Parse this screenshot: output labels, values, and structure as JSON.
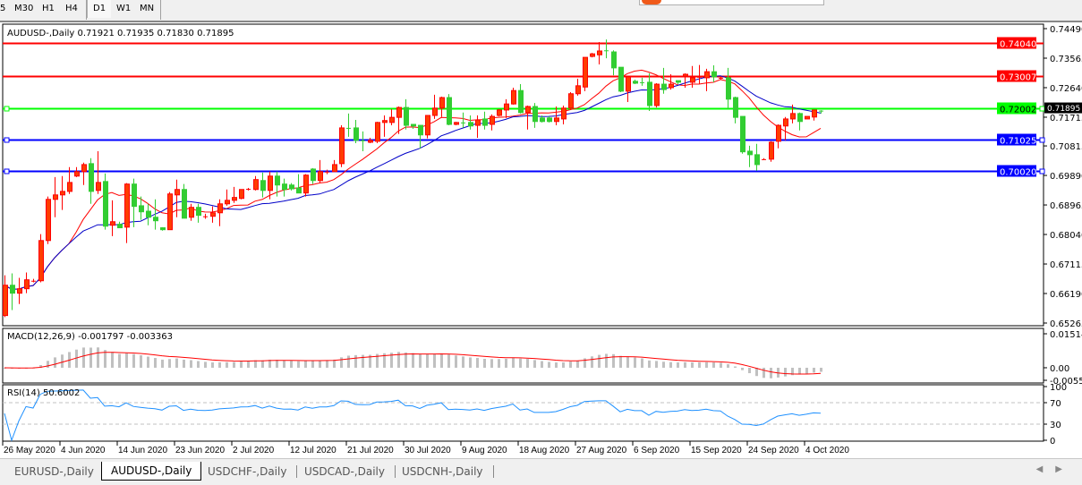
{
  "toolbar": {
    "timeframes": [
      "5",
      "M30",
      "H1",
      "H4",
      "D1",
      "W1",
      "MN"
    ],
    "selected": "D1"
  },
  "tabs": [
    "EURUSD-,Daily",
    "AUDUSD-,Daily",
    "USDCHF-,Daily",
    "USDCAD-,Daily",
    "USDCNH-,Daily"
  ],
  "active_tab": "AUDUSD-,Daily",
  "colors": {
    "bull_candle": "#ff3d00",
    "bull_border": "#ff0000",
    "bear_candle": "#32cd32",
    "fast_ma": "#ff0000",
    "slow_ma": "#0000c8",
    "macd_hist": "#c0c0c0",
    "macd_signal": "#ff0000",
    "rsi_line": "#1e90ff",
    "hline_red": "#ff0000",
    "hline_green": "#00ff00",
    "hline_blue": "#0000ff"
  },
  "chart_data": {
    "type": "candlestick",
    "title": "AUDUSD-,Daily  0.71921 0.71935 0.71830 0.71895",
    "symbol": "AUDUSD-",
    "period": "Daily",
    "last_ohlc": [
      0.71921,
      0.71935,
      0.7183,
      0.71895
    ],
    "current_price_label": "0.71895",
    "ylim": [
      0.65265,
      0.7449
    ],
    "y_ticks": [
      "0.74490",
      "0.73565",
      "0.72640",
      "0.71715",
      "0.70815",
      "0.69890",
      "0.68965",
      "0.68040",
      "0.67115",
      "0.66190",
      "0.65265"
    ],
    "x_tick_labels": [
      "26 May 2020",
      "4 Jun 2020",
      "14 Jun 2020",
      "23 Jun 2020",
      "2 Jul 2020",
      "12 Jul 2020",
      "21 Jul 2020",
      "30 Jul 2020",
      "9 Aug 2020",
      "18 Aug 2020",
      "27 Aug 2020",
      "6 Sep 2020",
      "15 Sep 2020",
      "24 Sep 2020",
      "4 Oct 2020"
    ],
    "horizontal_lines": [
      {
        "value": 0.7404,
        "label": "0.74040",
        "color": "red"
      },
      {
        "value": 0.73007,
        "label": "0.73007",
        "color": "red"
      },
      {
        "value": 0.72002,
        "label": "0.72002",
        "color": "green"
      },
      {
        "value": 0.71025,
        "label": "0.71025",
        "color": "blue"
      },
      {
        "value": 0.7002,
        "label": "0.70020",
        "color": "blue"
      }
    ],
    "candles_ohlc": [
      [
        0.655,
        0.6676,
        0.6545,
        0.6645
      ],
      [
        0.6645,
        0.6682,
        0.6567,
        0.662
      ],
      [
        0.662,
        0.6668,
        0.6586,
        0.6634
      ],
      [
        0.6634,
        0.6685,
        0.662,
        0.6662
      ],
      [
        0.6659,
        0.6665,
        0.6654,
        0.6659
      ],
      [
        0.6659,
        0.6805,
        0.6654,
        0.6785
      ],
      [
        0.6785,
        0.6923,
        0.6774,
        0.6914
      ],
      [
        0.6914,
        0.6984,
        0.6858,
        0.6928
      ],
      [
        0.6928,
        0.6987,
        0.6881,
        0.6939
      ],
      [
        0.6939,
        0.7015,
        0.6931,
        0.6967
      ],
      [
        0.6987,
        0.7015,
        0.6984,
        0.7001
      ],
      [
        0.7001,
        0.7029,
        0.6959,
        0.7023
      ],
      [
        0.7026,
        0.7043,
        0.69,
        0.6939
      ],
      [
        0.6942,
        0.7065,
        0.6931,
        0.6967
      ],
      [
        0.697,
        0.6995,
        0.6819,
        0.683
      ],
      [
        0.6833,
        0.6911,
        0.6799,
        0.6844
      ],
      [
        0.6836,
        0.6844,
        0.6825,
        0.6825
      ],
      [
        0.6827,
        0.6965,
        0.6777,
        0.6962
      ],
      [
        0.6962,
        0.6979,
        0.6827,
        0.6892
      ],
      [
        0.6894,
        0.6923,
        0.685,
        0.6875
      ],
      [
        0.6877,
        0.69,
        0.6833,
        0.6858
      ],
      [
        0.6858,
        0.6914,
        0.6819,
        0.6847
      ],
      [
        0.6825,
        0.6827,
        0.6816,
        0.6819
      ],
      [
        0.6819,
        0.6937,
        0.6819,
        0.6931
      ],
      [
        0.6928,
        0.6976,
        0.6858,
        0.6945
      ],
      [
        0.6945,
        0.6962,
        0.6855,
        0.6855
      ],
      [
        0.6858,
        0.69,
        0.6847,
        0.6889
      ],
      [
        0.6889,
        0.69,
        0.6841,
        0.6864
      ],
      [
        0.6858,
        0.6869,
        0.6853,
        0.6861
      ],
      [
        0.6861,
        0.6892,
        0.6841,
        0.6872
      ],
      [
        0.6872,
        0.6914,
        0.683,
        0.69
      ],
      [
        0.69,
        0.6945,
        0.6894,
        0.6911
      ],
      [
        0.6911,
        0.6953,
        0.6903,
        0.692
      ],
      [
        0.6917,
        0.6945,
        0.6914,
        0.6945
      ],
      [
        0.6945,
        0.695,
        0.6942,
        0.6947
      ],
      [
        0.6945,
        0.6987,
        0.6942,
        0.6976
      ],
      [
        0.6973,
        0.6998,
        0.692,
        0.6942
      ],
      [
        0.6942,
        0.7001,
        0.6914,
        0.6987
      ],
      [
        0.6987,
        0.7001,
        0.6923,
        0.6959
      ],
      [
        0.6962,
        0.6979,
        0.6923,
        0.6945
      ],
      [
        0.6959,
        0.6965,
        0.6942,
        0.6947
      ],
      [
        0.695,
        0.6993,
        0.6934,
        0.6934
      ],
      [
        0.6934,
        0.6993,
        0.6923,
        0.699
      ],
      [
        0.7009,
        0.7012,
        0.6962,
        0.6973
      ],
      [
        0.6973,
        0.7037,
        0.6965,
        0.7001
      ],
      [
        0.6998,
        0.7007,
        0.6993,
        0.7001
      ],
      [
        0.7001,
        0.7037,
        0.7001,
        0.7023
      ],
      [
        0.7026,
        0.7146,
        0.7015,
        0.7138
      ],
      [
        0.7138,
        0.7183,
        0.711,
        0.7135
      ],
      [
        0.7138,
        0.7163,
        0.709,
        0.7099
      ],
      [
        0.7099,
        0.7127,
        0.7065,
        0.7096
      ],
      [
        0.7093,
        0.7107,
        0.709,
        0.7099
      ],
      [
        0.7096,
        0.7157,
        0.709,
        0.7155
      ],
      [
        0.7155,
        0.7177,
        0.711,
        0.7161
      ],
      [
        0.7155,
        0.7197,
        0.7146,
        0.7171
      ],
      [
        0.7171,
        0.7205,
        0.7119,
        0.7202
      ],
      [
        0.7202,
        0.7228,
        0.7133,
        0.7146
      ],
      [
        0.7149,
        0.7149,
        0.7135,
        0.7144
      ],
      [
        0.7146,
        0.7146,
        0.7074,
        0.7116
      ],
      [
        0.7116,
        0.7177,
        0.7105,
        0.7177
      ],
      [
        0.7177,
        0.7242,
        0.7166,
        0.72
      ],
      [
        0.72,
        0.7236,
        0.7172,
        0.7233
      ],
      [
        0.7233,
        0.7244,
        0.7146,
        0.7149
      ],
      [
        0.7149,
        0.7157,
        0.7146,
        0.7155
      ],
      [
        0.7155,
        0.7186,
        0.7138,
        0.7152
      ],
      [
        0.7155,
        0.7177,
        0.7133,
        0.7144
      ],
      [
        0.7146,
        0.7177,
        0.7107,
        0.7163
      ],
      [
        0.7166,
        0.7189,
        0.7133,
        0.7146
      ],
      [
        0.7149,
        0.718,
        0.713,
        0.7174
      ],
      [
        0.7177,
        0.7197,
        0.7174,
        0.7194
      ],
      [
        0.7194,
        0.7228,
        0.7169,
        0.7213
      ],
      [
        0.7213,
        0.7264,
        0.7211,
        0.7255
      ],
      [
        0.7255,
        0.7275,
        0.7183,
        0.7186
      ],
      [
        0.7186,
        0.7208,
        0.7133,
        0.7205
      ],
      [
        0.7205,
        0.7216,
        0.7138,
        0.7158
      ],
      [
        0.7169,
        0.7177,
        0.7155,
        0.7158
      ],
      [
        0.7169,
        0.7174,
        0.7155,
        0.7158
      ],
      [
        0.7158,
        0.7205,
        0.7146,
        0.7169
      ],
      [
        0.7166,
        0.7208,
        0.7149,
        0.72
      ],
      [
        0.72,
        0.725,
        0.7194,
        0.7245
      ],
      [
        0.7245,
        0.7292,
        0.7239,
        0.727
      ],
      [
        0.7266,
        0.7359,
        0.7253,
        0.7359
      ],
      [
        0.7362,
        0.7373,
        0.7359,
        0.737
      ],
      [
        0.7367,
        0.7407,
        0.7337,
        0.7379
      ],
      [
        0.7381,
        0.7415,
        0.7356,
        0.7379
      ],
      [
        0.7376,
        0.7381,
        0.7303,
        0.7326
      ],
      [
        0.7328,
        0.7328,
        0.725,
        0.7253
      ],
      [
        0.7253,
        0.7301,
        0.7219,
        0.7298
      ],
      [
        0.7284,
        0.7289,
        0.7275,
        0.7278
      ],
      [
        0.7281,
        0.7295,
        0.727,
        0.7278
      ],
      [
        0.7281,
        0.7309,
        0.7191,
        0.7208
      ],
      [
        0.7208,
        0.7278,
        0.7202,
        0.7275
      ],
      [
        0.7275,
        0.7326,
        0.7245,
        0.7258
      ],
      [
        0.7264,
        0.7306,
        0.7258,
        0.7275
      ],
      [
        0.7286,
        0.7286,
        0.7275,
        0.7281
      ],
      [
        0.73,
        0.7309,
        0.7264,
        0.7306
      ],
      [
        0.7281,
        0.7332,
        0.7264,
        0.7295
      ],
      [
        0.7295,
        0.7335,
        0.7275,
        0.7298
      ],
      [
        0.7295,
        0.7323,
        0.7253,
        0.7314
      ],
      [
        0.7314,
        0.7334,
        0.7281,
        0.7298
      ],
      [
        0.7292,
        0.7298,
        0.7289,
        0.7295
      ],
      [
        0.7295,
        0.7326,
        0.7197,
        0.7228
      ],
      [
        0.7233,
        0.7236,
        0.7152,
        0.7171
      ],
      [
        0.7174,
        0.7174,
        0.7057,
        0.7063
      ],
      [
        0.7065,
        0.7082,
        0.7015,
        0.7054
      ],
      [
        0.7054,
        0.7088,
        0.7004,
        0.7023
      ],
      [
        0.704,
        0.7043,
        0.7037,
        0.704
      ],
      [
        0.704,
        0.7096,
        0.7032,
        0.7093
      ],
      [
        0.7096,
        0.7149,
        0.7074,
        0.7146
      ],
      [
        0.7144,
        0.7172,
        0.7099,
        0.7166
      ],
      [
        0.7166,
        0.7211,
        0.7152,
        0.7183
      ],
      [
        0.7183,
        0.7186,
        0.713,
        0.7158
      ],
      [
        0.7166,
        0.7174,
        0.7166,
        0.7174
      ],
      [
        0.7172,
        0.7194,
        0.7161,
        0.7194
      ],
      [
        0.71921,
        0.71935,
        0.7183,
        0.71895
      ]
    ],
    "moving_averages": [
      {
        "type": "SMA",
        "period": 10,
        "color": "red"
      },
      {
        "type": "SMA",
        "period": 20,
        "color": "blue"
      }
    ],
    "macd": {
      "label": "MACD(12,26,9) -0.001797 -0.003363",
      "params": [
        12,
        26,
        9
      ],
      "last_main": -0.001797,
      "last_signal": -0.003363,
      "y_ticks": [
        "0.015142",
        "0.00",
        "-0.005595"
      ],
      "ylim": [
        -0.005595,
        0.015142
      ]
    },
    "rsi": {
      "label": "RSI(14) 50.6002",
      "period": 14,
      "last": 50.6002,
      "y_ticks": [
        "100",
        "70",
        "30",
        "0"
      ],
      "levels": [
        70,
        30
      ],
      "ylim": [
        0,
        100
      ]
    },
    "grid": false
  }
}
